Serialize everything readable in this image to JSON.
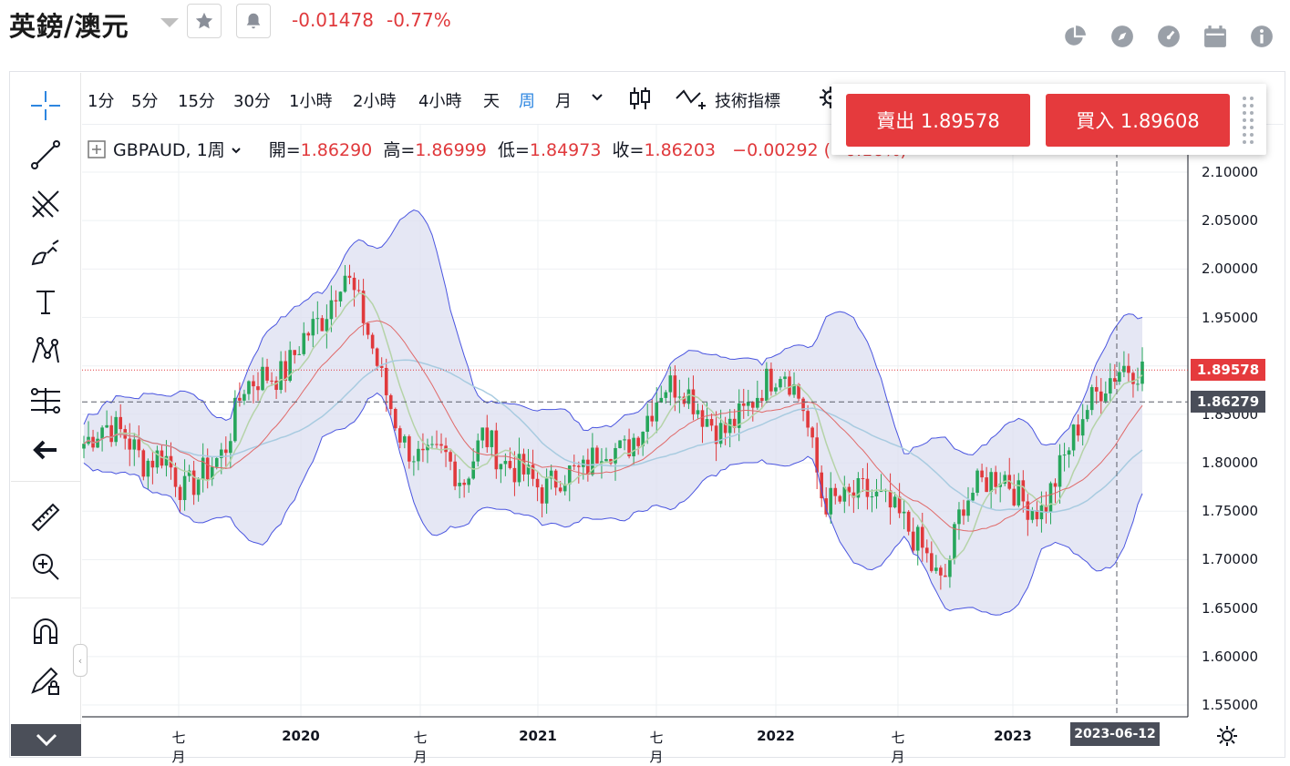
{
  "header": {
    "title": "英鎊/澳元",
    "change_abs": "-0.01478",
    "change_pct": "-0.77%",
    "favorite_icon": "star-icon",
    "alert_icon": "bell-icon",
    "right_icons": [
      "pie-chart-icon",
      "compass-icon",
      "gauge-icon",
      "calendar-icon",
      "info-icon"
    ]
  },
  "toolbar": {
    "timeframes": [
      "1分",
      "5分",
      "15分",
      "30分",
      "1小時",
      "2小時",
      "4小時",
      "天",
      "周",
      "月"
    ],
    "active_timeframe": "周",
    "indicators_label": "技術指標"
  },
  "legend": {
    "symbol": "GBPAUD, 1周",
    "open_label": "開=",
    "open": "1.86290",
    "high_label": "高=",
    "high": "1.86999",
    "low_label": "低=",
    "low": "1.84973",
    "close_label": "收=",
    "close": "1.86203",
    "change": "−0.00292 (−0.16%)"
  },
  "trade": {
    "sell_label": "賣出 1.89578",
    "buy_label": "買入 1.89608"
  },
  "price_scale": {
    "ticks": [
      "2.10000",
      "2.05000",
      "2.00000",
      "1.95000",
      "1.90000",
      "1.85000",
      "1.80000",
      "1.75000",
      "1.70000",
      "1.65000",
      "1.60000",
      "1.55000"
    ],
    "last_price": "1.89578",
    "crosshair_price": "1.86279",
    "last_color": "#e53a3d",
    "crosshair_color": "#4a4e59"
  },
  "time_scale": {
    "labels": [
      "七月",
      "2020",
      "七月",
      "2021",
      "七月",
      "2022",
      "七月",
      "2023"
    ],
    "crosshair_date": "2023-06-12"
  },
  "colors": {
    "up": "#26a65b",
    "down": "#e0393c",
    "band_fill": "#dcdff0",
    "band_line": "#4a55e0",
    "accent": "#2d86e0"
  },
  "chart_data": {
    "type": "candlestick",
    "symbol": "GBPAUD",
    "interval": "1周",
    "ylim": [
      1.54,
      2.12
    ],
    "x_range": [
      "2019-02",
      "2023-07"
    ],
    "overlays": [
      "bollinger-bands",
      "moving-averages"
    ],
    "grid": true,
    "close_series": [
      {
        "date": "2019-02",
        "close": 1.82
      },
      {
        "date": "2019-03",
        "close": 1.84
      },
      {
        "date": "2019-04",
        "close": 1.83
      },
      {
        "date": "2019-05",
        "close": 1.8
      },
      {
        "date": "2019-06",
        "close": 1.81
      },
      {
        "date": "2019-07",
        "close": 1.77
      },
      {
        "date": "2019-08",
        "close": 1.79
      },
      {
        "date": "2019-09",
        "close": 1.81
      },
      {
        "date": "2019-10",
        "close": 1.88
      },
      {
        "date": "2019-11",
        "close": 1.89
      },
      {
        "date": "2019-12",
        "close": 1.89
      },
      {
        "date": "2020-01",
        "close": 1.93
      },
      {
        "date": "2020-02",
        "close": 1.95
      },
      {
        "date": "2020-03",
        "close": 2.0
      },
      {
        "date": "2020-04",
        "close": 1.95
      },
      {
        "date": "2020-05",
        "close": 1.88
      },
      {
        "date": "2020-06",
        "close": 1.82
      },
      {
        "date": "2020-07",
        "close": 1.8
      },
      {
        "date": "2020-08",
        "close": 1.81
      },
      {
        "date": "2020-09",
        "close": 1.78
      },
      {
        "date": "2020-10",
        "close": 1.83
      },
      {
        "date": "2020-11",
        "close": 1.8
      },
      {
        "date": "2020-12",
        "close": 1.79
      },
      {
        "date": "2021-01",
        "close": 1.77
      },
      {
        "date": "2021-02",
        "close": 1.79
      },
      {
        "date": "2021-03",
        "close": 1.79
      },
      {
        "date": "2021-04",
        "close": 1.82
      },
      {
        "date": "2021-05",
        "close": 1.81
      },
      {
        "date": "2021-06",
        "close": 1.84
      },
      {
        "date": "2021-07",
        "close": 1.88
      },
      {
        "date": "2021-08",
        "close": 1.88
      },
      {
        "date": "2021-09",
        "close": 1.85
      },
      {
        "date": "2021-10",
        "close": 1.83
      },
      {
        "date": "2021-11",
        "close": 1.85
      },
      {
        "date": "2021-12",
        "close": 1.88
      },
      {
        "date": "2022-01",
        "close": 1.9
      },
      {
        "date": "2022-02",
        "close": 1.86
      },
      {
        "date": "2022-03",
        "close": 1.76
      },
      {
        "date": "2022-04",
        "close": 1.76
      },
      {
        "date": "2022-05",
        "close": 1.77
      },
      {
        "date": "2022-06",
        "close": 1.76
      },
      {
        "date": "2022-07",
        "close": 1.74
      },
      {
        "date": "2022-08",
        "close": 1.71
      },
      {
        "date": "2022-09",
        "close": 1.67
      },
      {
        "date": "2022-10",
        "close": 1.76
      },
      {
        "date": "2022-11",
        "close": 1.78
      },
      {
        "date": "2022-12",
        "close": 1.79
      },
      {
        "date": "2023-01",
        "close": 1.76
      },
      {
        "date": "2023-02",
        "close": 1.75
      },
      {
        "date": "2023-03",
        "close": 1.8
      },
      {
        "date": "2023-04",
        "close": 1.85
      },
      {
        "date": "2023-05",
        "close": 1.88
      },
      {
        "date": "2023-06",
        "close": 1.9
      },
      {
        "date": "2023-07",
        "close": 1.896
      }
    ]
  }
}
